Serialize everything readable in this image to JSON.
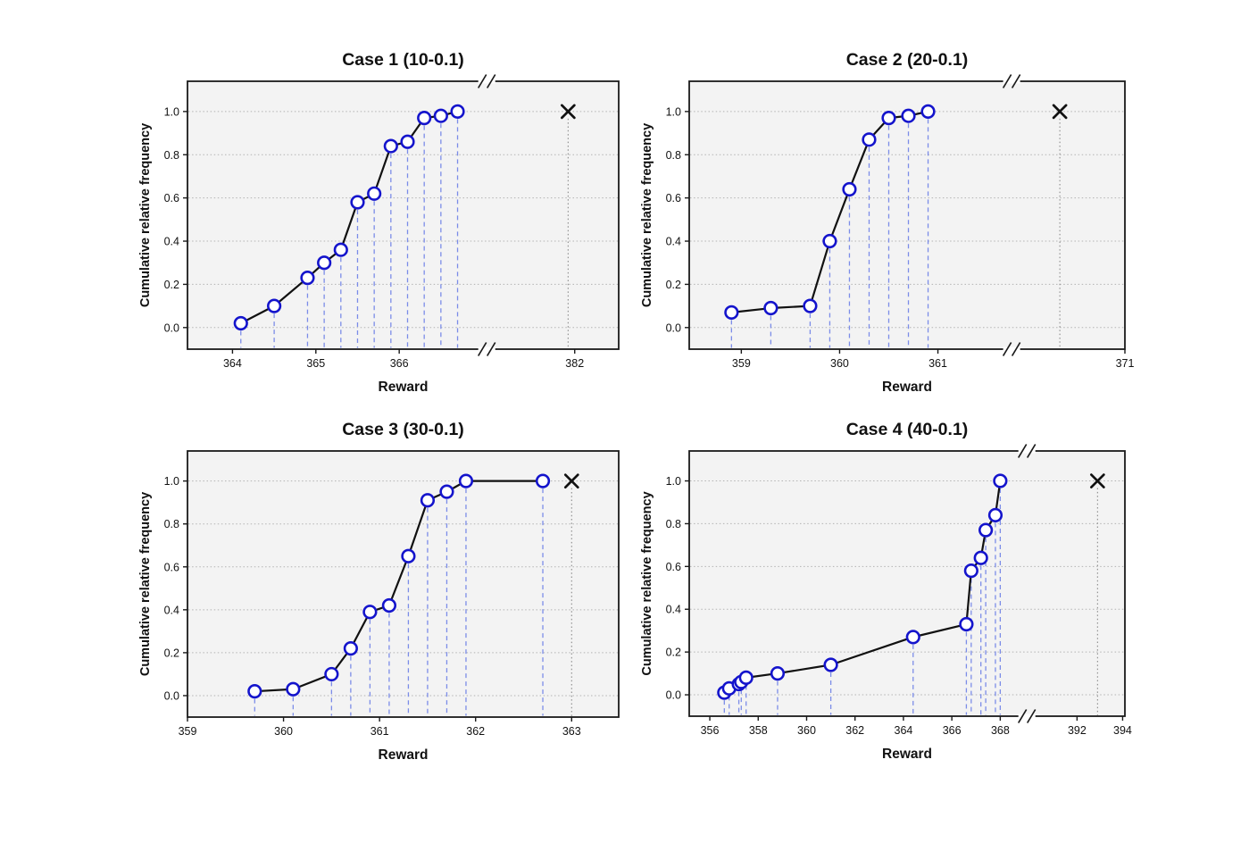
{
  "figure": {
    "background": "#ffffff",
    "xlabel": "Reward",
    "ylabel": "Cumulative relative frequency"
  },
  "colors": {
    "plot_bg": "#f3f3f3",
    "frame": "#1a1a1a",
    "gridline": "#b3b3b3",
    "line": "#111111",
    "marker_edge": "#1414cc",
    "marker_fill": "#ffffff",
    "dropline": "#7b8ce8",
    "xmark": "#111111",
    "xmark_dropline": "#8a8a8a",
    "text": "#111111"
  },
  "chart_data": [
    {
      "type": "line",
      "title": "Case 1 (10-0.1)",
      "xlabel": "Reward",
      "ylabel": "Cumulative relative frequency",
      "ylim": [
        -0.1,
        1.14
      ],
      "yticks": [
        0.0,
        0.2,
        0.4,
        0.6,
        0.8,
        1.0
      ],
      "x_axis": {
        "break": true,
        "break_frac": 0.694,
        "main": {
          "min": 363.46,
          "max": 367.05,
          "ticks": [
            364,
            365,
            366
          ]
        },
        "far": {
          "min": 378.0,
          "max": 384.0,
          "ticks": [
            382
          ]
        }
      },
      "points": [
        [
          364.1,
          0.02
        ],
        [
          364.5,
          0.1
        ],
        [
          364.9,
          0.23
        ],
        [
          365.1,
          0.3
        ],
        [
          365.3,
          0.36
        ],
        [
          365.5,
          0.58
        ],
        [
          365.7,
          0.62
        ],
        [
          365.9,
          0.84
        ],
        [
          366.1,
          0.86
        ],
        [
          366.3,
          0.97
        ],
        [
          366.5,
          0.98
        ],
        [
          366.7,
          1.0
        ]
      ],
      "x_marker": {
        "x": 381.7,
        "y": 1.0
      }
    },
    {
      "type": "line",
      "title": "Case 2 (20-0.1)",
      "xlabel": "Reward",
      "ylabel": "Cumulative relative frequency",
      "ylim": [
        -0.1,
        1.14
      ],
      "yticks": [
        0.0,
        0.2,
        0.4,
        0.6,
        0.8,
        1.0
      ],
      "x_axis": {
        "break": true,
        "break_frac": 0.74,
        "main": {
          "min": 358.47,
          "max": 361.75,
          "ticks": [
            359,
            360,
            361
          ]
        },
        "far": {
          "min": 366.3,
          "max": 371.0,
          "ticks": [
            371
          ]
        }
      },
      "points": [
        [
          358.9,
          0.07
        ],
        [
          359.3,
          0.09
        ],
        [
          359.7,
          0.1
        ],
        [
          359.9,
          0.4
        ],
        [
          360.1,
          0.64
        ],
        [
          360.3,
          0.87
        ],
        [
          360.5,
          0.97
        ],
        [
          360.7,
          0.98
        ],
        [
          360.9,
          1.0
        ]
      ],
      "x_marker": {
        "x": 368.3,
        "y": 1.0
      }
    },
    {
      "type": "line",
      "title": "Case 3 (30-0.1)",
      "xlabel": "Reward",
      "ylabel": "Cumulative relative frequency",
      "ylim": [
        -0.1,
        1.14
      ],
      "yticks": [
        0.0,
        0.2,
        0.4,
        0.6,
        0.8,
        1.0
      ],
      "x_axis": {
        "break": false,
        "main": {
          "min": 359.0,
          "max": 363.49,
          "ticks": [
            359,
            360,
            361,
            362,
            363
          ]
        }
      },
      "points": [
        [
          359.7,
          0.02
        ],
        [
          360.1,
          0.03
        ],
        [
          360.5,
          0.1
        ],
        [
          360.7,
          0.22
        ],
        [
          360.9,
          0.39
        ],
        [
          361.1,
          0.42
        ],
        [
          361.3,
          0.65
        ],
        [
          361.5,
          0.91
        ],
        [
          361.7,
          0.95
        ],
        [
          361.9,
          1.0
        ],
        [
          362.7,
          1.0
        ]
      ],
      "x_marker": {
        "x": 363.0,
        "y": 1.0
      }
    },
    {
      "type": "line",
      "title": "Case 4 (40-0.1)",
      "xlabel": "Reward",
      "ylabel": "Cumulative relative frequency",
      "ylim": [
        -0.1,
        1.14
      ],
      "yticks": [
        0.0,
        0.2,
        0.4,
        0.6,
        0.8,
        1.0
      ],
      "x_axis": {
        "break": true,
        "break_frac": 0.775,
        "main": {
          "min": 355.15,
          "max": 369.1,
          "ticks": [
            356,
            358,
            360,
            362,
            364,
            366,
            368
          ]
        },
        "far": {
          "min": 389.8,
          "max": 394.1,
          "ticks": [
            392,
            394
          ]
        }
      },
      "points": [
        [
          356.6,
          0.01
        ],
        [
          356.8,
          0.03
        ],
        [
          357.2,
          0.05
        ],
        [
          357.3,
          0.06
        ],
        [
          357.5,
          0.08
        ],
        [
          358.8,
          0.1
        ],
        [
          361.0,
          0.14
        ],
        [
          364.4,
          0.27
        ],
        [
          366.6,
          0.33
        ],
        [
          366.8,
          0.58
        ],
        [
          367.2,
          0.64
        ],
        [
          367.4,
          0.77
        ],
        [
          367.8,
          0.84
        ],
        [
          368.0,
          1.0
        ]
      ],
      "x_marker": {
        "x": 392.9,
        "y": 1.0
      }
    }
  ]
}
